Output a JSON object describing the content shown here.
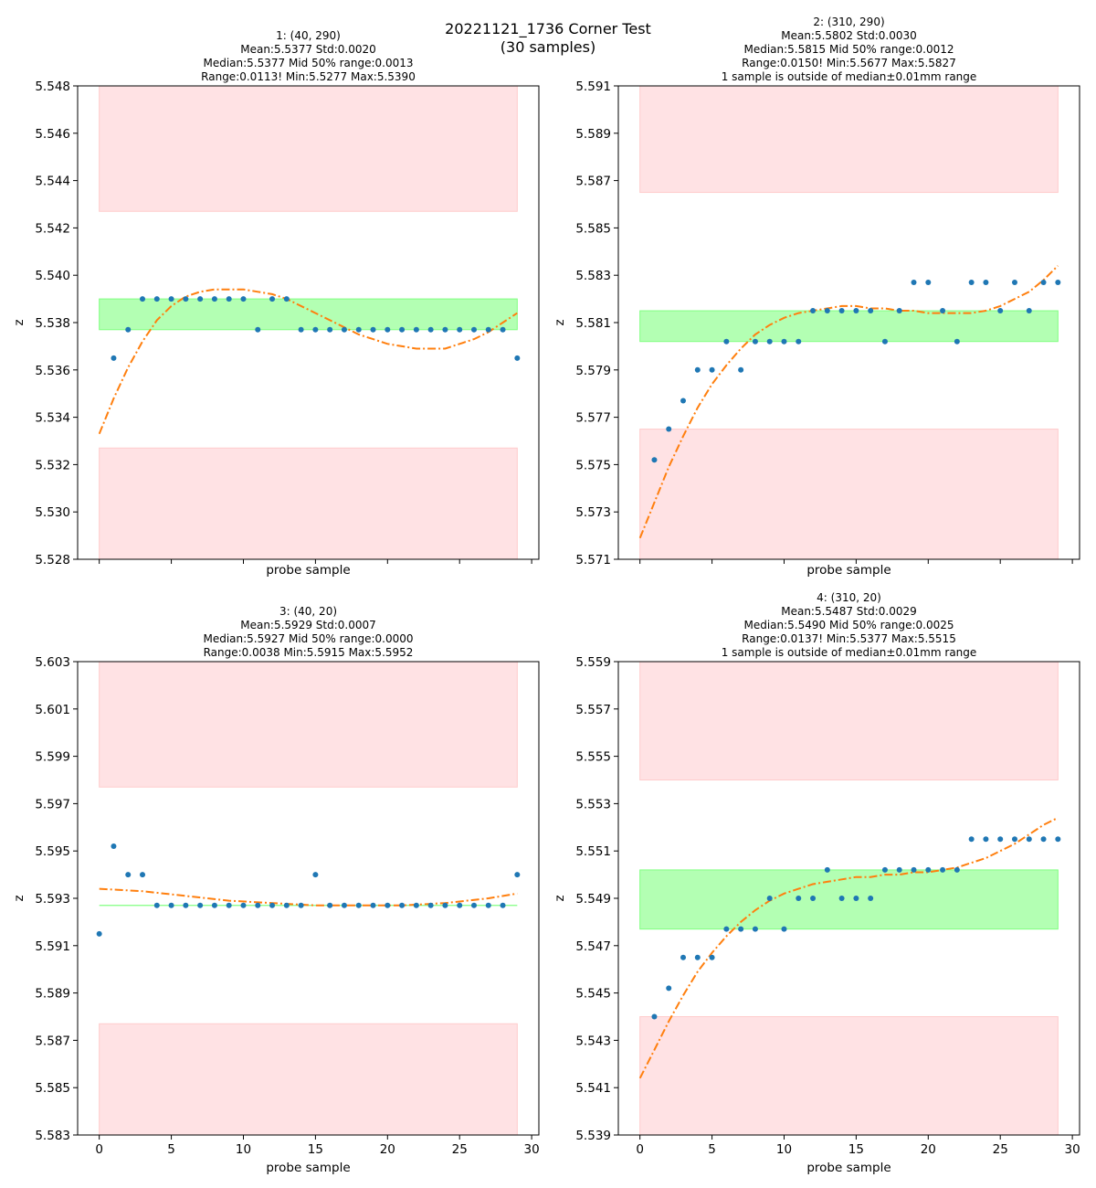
{
  "figure": {
    "title_line1": "20221121_1736 Corner Test",
    "title_line2": "(30 samples)"
  },
  "colors": {
    "points": "#1f77b4",
    "fit": "#ff7f0e",
    "green_band": "#b3ffb3",
    "green_edge": "#80ff80",
    "red_band": "#ffe2e4",
    "red_edge": "#ffcccc"
  },
  "chart_data": [
    {
      "type": "scatter",
      "title_lines": [
        "1: (40, 290)",
        "Mean:5.5377  Std:0.0020",
        "Median:5.5377  Mid 50% range:0.0013",
        "Range:0.0113!  Min:5.5277  Max:5.5390"
      ],
      "xlabel": "probe sample",
      "ylabel": "z",
      "show_x_tick_labels": false,
      "xlim": [
        -1.5,
        30.5
      ],
      "ylim": [
        5.528,
        5.548
      ],
      "yticks": [
        "5.528",
        "5.530",
        "5.532",
        "5.534",
        "5.536",
        "5.538",
        "5.540",
        "5.542",
        "5.544",
        "5.546",
        "5.548"
      ],
      "xticks": [
        "0",
        "5",
        "10",
        "15",
        "20",
        "25",
        "30"
      ],
      "green_band": [
        5.5377,
        5.539
      ],
      "red_low": [
        5.528,
        5.5327
      ],
      "red_high": [
        5.5427,
        5.548
      ],
      "y": [
        null,
        5.5365,
        5.5377,
        5.539,
        5.539,
        5.539,
        5.539,
        5.539,
        5.539,
        5.539,
        5.539,
        5.5377,
        5.539,
        5.539,
        5.5377,
        5.5377,
        5.5377,
        5.5377,
        5.5377,
        5.5377,
        5.5377,
        5.5377,
        5.5377,
        5.5377,
        5.5377,
        5.5377,
        5.5377,
        5.5377,
        5.5377,
        5.5365
      ],
      "fit": [
        [
          0,
          5.5333
        ],
        [
          1,
          5.5348
        ],
        [
          2,
          5.5361
        ],
        [
          3,
          5.5372
        ],
        [
          4,
          5.5381
        ],
        [
          5,
          5.5387
        ],
        [
          6,
          5.5391
        ],
        [
          7,
          5.5393
        ],
        [
          8,
          5.5394
        ],
        [
          9,
          5.5394
        ],
        [
          10,
          5.5394
        ],
        [
          11,
          5.5393
        ],
        [
          12,
          5.5392
        ],
        [
          13,
          5.539
        ],
        [
          14,
          5.5387
        ],
        [
          15,
          5.5384
        ],
        [
          16,
          5.5381
        ],
        [
          17,
          5.5378
        ],
        [
          18,
          5.5375
        ],
        [
          19,
          5.5373
        ],
        [
          20,
          5.5371
        ],
        [
          21,
          5.537
        ],
        [
          22,
          5.5369
        ],
        [
          23,
          5.5369
        ],
        [
          24,
          5.5369
        ],
        [
          25,
          5.5371
        ],
        [
          26,
          5.5373
        ],
        [
          27,
          5.5376
        ],
        [
          28,
          5.538
        ],
        [
          29,
          5.5384
        ]
      ]
    },
    {
      "type": "scatter",
      "title_lines": [
        "2: (310, 290)",
        "Mean:5.5802  Std:0.0030",
        "Median:5.5815  Mid 50% range:0.0012",
        "Range:0.0150!  Min:5.5677  Max:5.5827",
        "1 sample is outside of median±0.01mm range"
      ],
      "xlabel": "probe sample",
      "ylabel": "z",
      "show_x_tick_labels": false,
      "xlim": [
        -1.5,
        30.5
      ],
      "ylim": [
        5.571,
        5.591
      ],
      "yticks": [
        "5.571",
        "5.573",
        "5.575",
        "5.577",
        "5.579",
        "5.581",
        "5.583",
        "5.585",
        "5.587",
        "5.589",
        "5.591"
      ],
      "xticks": [
        "0",
        "5",
        "10",
        "15",
        "20",
        "25",
        "30"
      ],
      "green_band": [
        5.5802,
        5.5815
      ],
      "red_low": [
        5.571,
        5.5765
      ],
      "red_high": [
        5.5865,
        5.591
      ],
      "y": [
        null,
        5.5752,
        5.5765,
        5.5777,
        5.579,
        5.579,
        5.5802,
        5.579,
        5.5802,
        5.5802,
        5.5802,
        5.5802,
        5.5815,
        5.5815,
        5.5815,
        5.5815,
        5.5815,
        5.5802,
        5.5815,
        5.5827,
        5.5827,
        5.5815,
        5.5802,
        5.5827,
        5.5827,
        5.5815,
        5.5827,
        5.5815,
        5.5827,
        5.5827
      ],
      "fit": [
        [
          0,
          5.5719
        ],
        [
          1,
          5.5734
        ],
        [
          2,
          5.5749
        ],
        [
          3,
          5.5762
        ],
        [
          4,
          5.5774
        ],
        [
          5,
          5.5784
        ],
        [
          6,
          5.5792
        ],
        [
          7,
          5.5799
        ],
        [
          8,
          5.5805
        ],
        [
          9,
          5.5809
        ],
        [
          10,
          5.5812
        ],
        [
          11,
          5.5814
        ],
        [
          12,
          5.5815
        ],
        [
          13,
          5.5816
        ],
        [
          14,
          5.5817
        ],
        [
          15,
          5.5817
        ],
        [
          16,
          5.5816
        ],
        [
          17,
          5.5816
        ],
        [
          18,
          5.5815
        ],
        [
          19,
          5.5815
        ],
        [
          20,
          5.5814
        ],
        [
          21,
          5.5814
        ],
        [
          22,
          5.5814
        ],
        [
          23,
          5.5814
        ],
        [
          24,
          5.5815
        ],
        [
          25,
          5.5817
        ],
        [
          26,
          5.582
        ],
        [
          27,
          5.5823
        ],
        [
          28,
          5.5828
        ],
        [
          29,
          5.5834
        ]
      ]
    },
    {
      "type": "scatter",
      "title_lines": [
        "3: (40, 20)",
        "Mean:5.5929  Std:0.0007",
        "Median:5.5927  Mid 50% range:0.0000",
        "Range:0.0038  Min:5.5915  Max:5.5952"
      ],
      "xlabel": "probe sample",
      "ylabel": "z",
      "show_x_tick_labels": true,
      "xlim": [
        -1.5,
        30.5
      ],
      "ylim": [
        5.583,
        5.603
      ],
      "yticks": [
        "5.583",
        "5.585",
        "5.587",
        "5.589",
        "5.591",
        "5.593",
        "5.595",
        "5.597",
        "5.599",
        "5.601",
        "5.603"
      ],
      "xticks": [
        "0",
        "5",
        "10",
        "15",
        "20",
        "25",
        "30"
      ],
      "green_band": [
        5.5927,
        5.5927
      ],
      "red_low": [
        5.583,
        5.5877
      ],
      "red_high": [
        5.5977,
        5.603
      ],
      "y": [
        5.5915,
        5.5952,
        5.594,
        5.594,
        5.5927,
        5.5927,
        5.5927,
        5.5927,
        5.5927,
        5.5927,
        5.5927,
        5.5927,
        5.5927,
        5.5927,
        5.5927,
        5.594,
        5.5927,
        5.5927,
        5.5927,
        5.5927,
        5.5927,
        5.5927,
        5.5927,
        5.5927,
        5.5927,
        5.5927,
        5.5927,
        5.5927,
        5.5927,
        5.594
      ],
      "fit": [
        [
          0,
          5.5934
        ],
        [
          3,
          5.5933
        ],
        [
          6,
          5.5931
        ],
        [
          9,
          5.5929
        ],
        [
          12,
          5.5928
        ],
        [
          15,
          5.5927
        ],
        [
          18,
          5.5927
        ],
        [
          21,
          5.5927
        ],
        [
          24,
          5.5928
        ],
        [
          27,
          5.593
        ],
        [
          29,
          5.5932
        ]
      ]
    },
    {
      "type": "scatter",
      "title_lines": [
        "4: (310, 20)",
        "Mean:5.5487  Std:0.0029",
        "Median:5.5490  Mid 50% range:0.0025",
        "Range:0.0137!  Min:5.5377  Max:5.5515",
        "1 sample is outside of median±0.01mm range"
      ],
      "xlabel": "probe sample",
      "ylabel": "z",
      "show_x_tick_labels": true,
      "xlim": [
        -1.5,
        30.5
      ],
      "ylim": [
        5.539,
        5.559
      ],
      "yticks": [
        "5.539",
        "5.541",
        "5.543",
        "5.545",
        "5.547",
        "5.549",
        "5.551",
        "5.553",
        "5.555",
        "5.557",
        "5.559"
      ],
      "xticks": [
        "0",
        "5",
        "10",
        "15",
        "20",
        "25",
        "30"
      ],
      "green_band": [
        5.5477,
        5.5502
      ],
      "red_low": [
        5.539,
        5.544
      ],
      "red_high": [
        5.554,
        5.559
      ],
      "y": [
        null,
        5.544,
        5.5452,
        5.5465,
        5.5465,
        5.5465,
        5.5477,
        5.5477,
        5.5477,
        5.549,
        5.5477,
        5.549,
        5.549,
        5.5502,
        5.549,
        5.549,
        5.549,
        5.5502,
        5.5502,
        5.5502,
        5.5502,
        5.5502,
        5.5502,
        5.5515,
        5.5515,
        5.5515,
        5.5515,
        5.5515,
        5.5515,
        5.5515
      ],
      "fit": [
        [
          0,
          5.5414
        ],
        [
          1,
          5.5426
        ],
        [
          2,
          5.5438
        ],
        [
          3,
          5.5449
        ],
        [
          4,
          5.5459
        ],
        [
          5,
          5.5467
        ],
        [
          6,
          5.5474
        ],
        [
          7,
          5.548
        ],
        [
          8,
          5.5485
        ],
        [
          9,
          5.5489
        ],
        [
          10,
          5.5492
        ],
        [
          11,
          5.5494
        ],
        [
          12,
          5.5496
        ],
        [
          13,
          5.5497
        ],
        [
          14,
          5.5498
        ],
        [
          15,
          5.5499
        ],
        [
          16,
          5.5499
        ],
        [
          17,
          5.55
        ],
        [
          18,
          5.55
        ],
        [
          19,
          5.5501
        ],
        [
          20,
          5.5501
        ],
        [
          21,
          5.5502
        ],
        [
          22,
          5.5503
        ],
        [
          23,
          5.5505
        ],
        [
          24,
          5.5507
        ],
        [
          25,
          5.551
        ],
        [
          26,
          5.5513
        ],
        [
          27,
          5.5517
        ],
        [
          28,
          5.5521
        ],
        [
          29,
          5.5524
        ]
      ]
    }
  ]
}
